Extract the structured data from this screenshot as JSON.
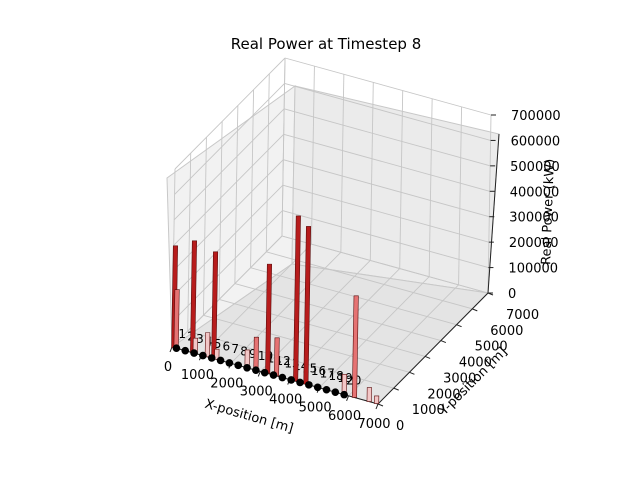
{
  "chart_data": {
    "type": "bar3d",
    "title": "Real Power at Timestep 8",
    "xlabel": "X-position [m]",
    "ylabel": "Y-position [m]",
    "zlabel": "Real Power (kW)",
    "xlim": [
      0,
      7000
    ],
    "ylim": [
      0,
      7000
    ],
    "zlim": [
      0,
      700000
    ],
    "x_ticks": [
      "0",
      "1000",
      "2000",
      "3000",
      "4000",
      "5000",
      "6000",
      "7000"
    ],
    "y_ticks": [
      "0",
      "1000",
      "2000",
      "3000",
      "4000",
      "5000",
      "6000",
      "7000"
    ],
    "z_ticks": [
      "0",
      "100000",
      "200000",
      "300000",
      "400000",
      "500000",
      "600000",
      "700000"
    ],
    "grid": true,
    "node_color": "#000000",
    "colors": {
      "high": "#b71c1c",
      "mid": "#e57373",
      "low": "#f3c6c6"
    },
    "nodes": [
      {
        "label": "1",
        "x": 150,
        "y": 0
      },
      {
        "label": "2",
        "x": 450,
        "y": 0
      },
      {
        "label": "3",
        "x": 750,
        "y": 0
      },
      {
        "label": "4",
        "x": 1050,
        "y": 0
      },
      {
        "label": "5",
        "x": 1350,
        "y": 0
      },
      {
        "label": "6",
        "x": 1650,
        "y": 0
      },
      {
        "label": "7",
        "x": 1950,
        "y": 0
      },
      {
        "label": "8",
        "x": 2250,
        "y": 0
      },
      {
        "label": "9",
        "x": 2550,
        "y": 0
      },
      {
        "label": "10",
        "x": 2850,
        "y": 0
      },
      {
        "label": "11",
        "x": 3150,
        "y": 0
      },
      {
        "label": "12",
        "x": 3450,
        "y": 0
      },
      {
        "label": "13",
        "x": 3750,
        "y": 0
      },
      {
        "label": "14",
        "x": 4050,
        "y": 0
      },
      {
        "label": "15",
        "x": 4350,
        "y": 0
      },
      {
        "label": "16",
        "x": 4650,
        "y": 0
      },
      {
        "label": "17",
        "x": 4950,
        "y": 0
      },
      {
        "label": "18",
        "x": 5250,
        "y": 0
      },
      {
        "label": "19",
        "x": 5550,
        "y": 0
      },
      {
        "label": "20",
        "x": 5850,
        "y": 0
      }
    ],
    "bars": [
      {
        "x": 60,
        "y": 0,
        "value": 400000,
        "shade": "high"
      },
      {
        "x": 140,
        "y": 0,
        "value": 230000,
        "shade": "mid"
      },
      {
        "x": 700,
        "y": 0,
        "value": 440000,
        "shade": "high"
      },
      {
        "x": 790,
        "y": 0,
        "value": 60000,
        "shade": "low"
      },
      {
        "x": 1200,
        "y": 0,
        "value": 95000,
        "shade": "low"
      },
      {
        "x": 1420,
        "y": 0,
        "value": 420000,
        "shade": "high"
      },
      {
        "x": 1520,
        "y": 0,
        "value": 40000,
        "shade": "low"
      },
      {
        "x": 2550,
        "y": 0,
        "value": 70000,
        "shade": "low"
      },
      {
        "x": 2850,
        "y": 0,
        "value": 130000,
        "shade": "mid"
      },
      {
        "x": 3250,
        "y": 0,
        "value": 430000,
        "shade": "high"
      },
      {
        "x": 3550,
        "y": 0,
        "value": 150000,
        "shade": "mid"
      },
      {
        "x": 4200,
        "y": 0,
        "value": 650000,
        "shade": "high"
      },
      {
        "x": 4550,
        "y": 0,
        "value": 620000,
        "shade": "high"
      },
      {
        "x": 5850,
        "y": 0,
        "value": 80000,
        "shade": "low"
      },
      {
        "x": 6200,
        "y": 0,
        "value": 400000,
        "shade": "mid"
      },
      {
        "x": 6700,
        "y": 0,
        "value": 55000,
        "shade": "low"
      },
      {
        "x": 6950,
        "y": 0,
        "value": 30000,
        "shade": "low"
      }
    ]
  }
}
